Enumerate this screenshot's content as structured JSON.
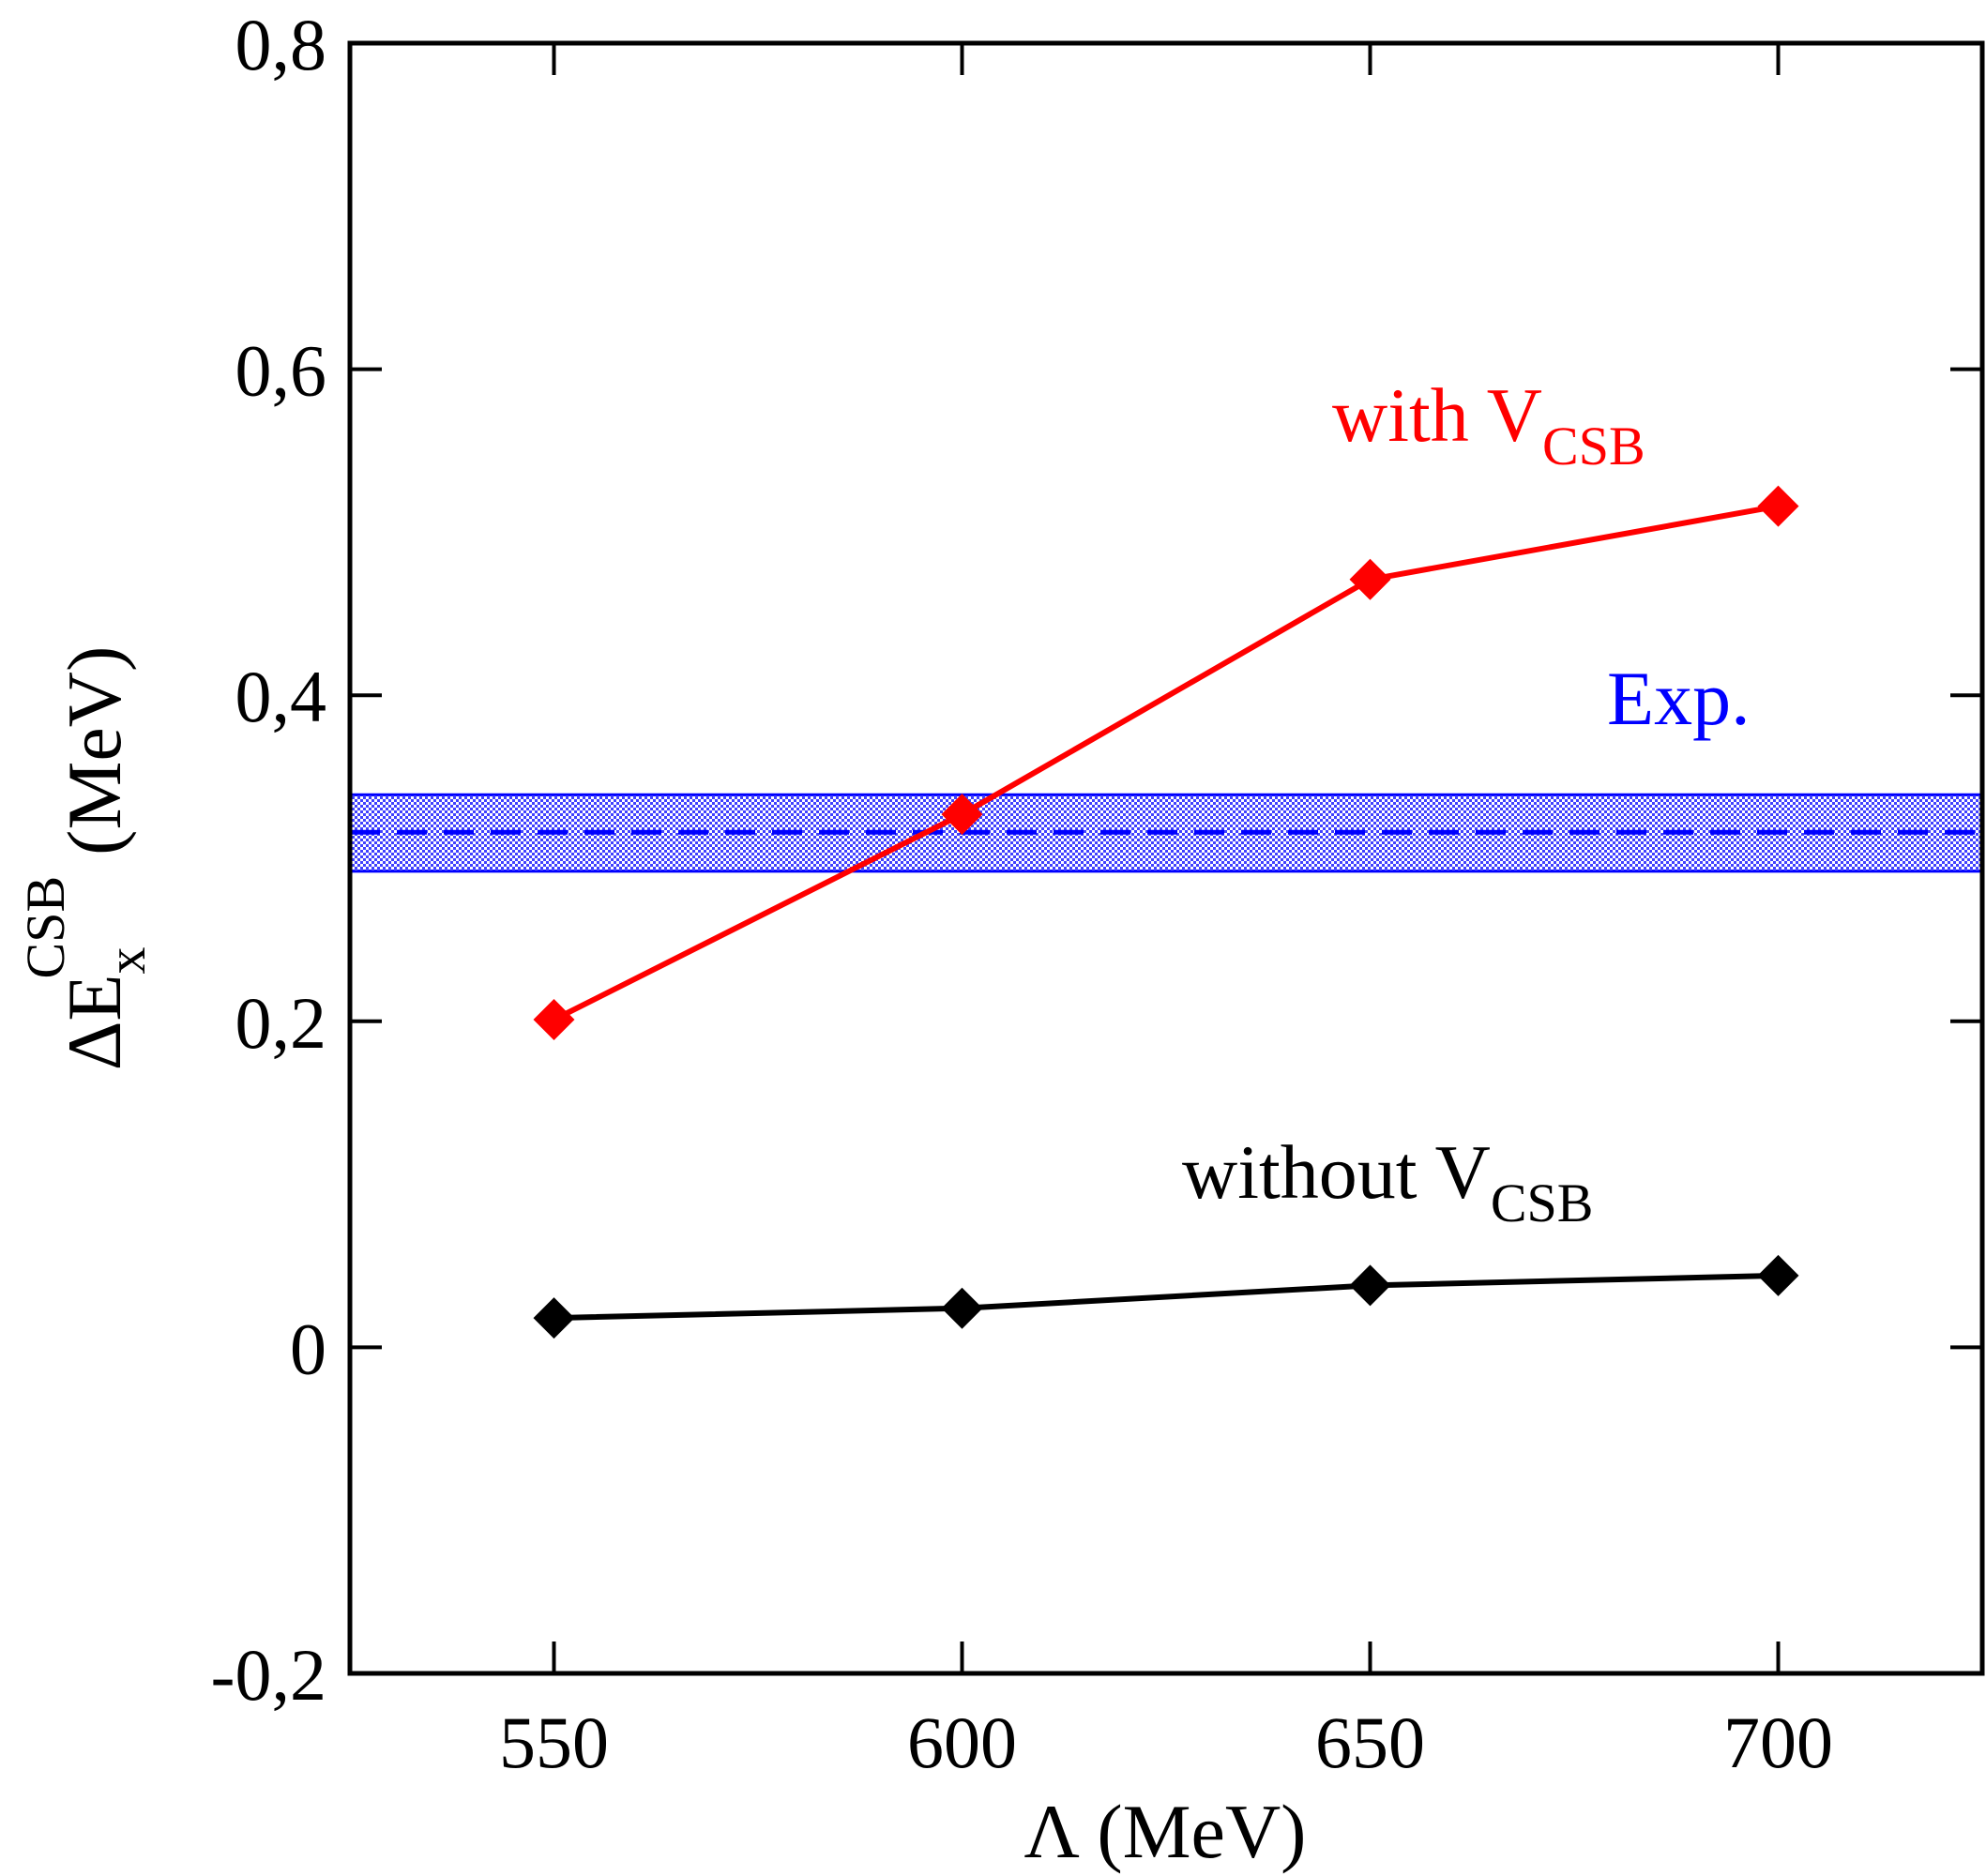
{
  "chart_data": {
    "type": "line",
    "xlabel": "Λ (MeV)",
    "ylabel_main": "ΔE",
    "ylabel_sub": "x",
    "ylabel_sup": "CSB",
    "ylabel_unit": "(MeV)",
    "xlim": [
      525,
      725
    ],
    "ylim": [
      -0.2,
      0.8
    ],
    "x_ticks": [
      550,
      600,
      650,
      700
    ],
    "x_tick_labels": [
      "550",
      "600",
      "650",
      "700"
    ],
    "y_ticks": [
      -0.2,
      0,
      0.2,
      0.4,
      0.6,
      0.8
    ],
    "y_tick_labels": [
      "-0,2",
      "0",
      "0,2",
      "0,4",
      "0,6",
      "0,8"
    ],
    "grid": false,
    "series": [
      {
        "name": "with V_CSB",
        "color": "#ff0000",
        "marker": "diamond",
        "x": [
          550,
          600,
          650,
          700
        ],
        "y": [
          0.201,
          0.327,
          0.471,
          0.516
        ]
      },
      {
        "name": "without V_CSB",
        "color": "#000000",
        "marker": "diamond",
        "x": [
          550,
          600,
          650,
          700
        ],
        "y": [
          0.018,
          0.024,
          0.038,
          0.044
        ]
      }
    ],
    "experiment": {
      "color": "#0000ff",
      "value": 0.316,
      "band": [
        0.292,
        0.339
      ]
    },
    "annotations": {
      "with": {
        "main": "with V",
        "sub": "CSB",
        "color": "#ff0000"
      },
      "without": {
        "main": "without V",
        "sub": "CSB",
        "color": "#000000"
      },
      "exp": {
        "text": "Exp.",
        "color": "#0000ff"
      }
    }
  }
}
